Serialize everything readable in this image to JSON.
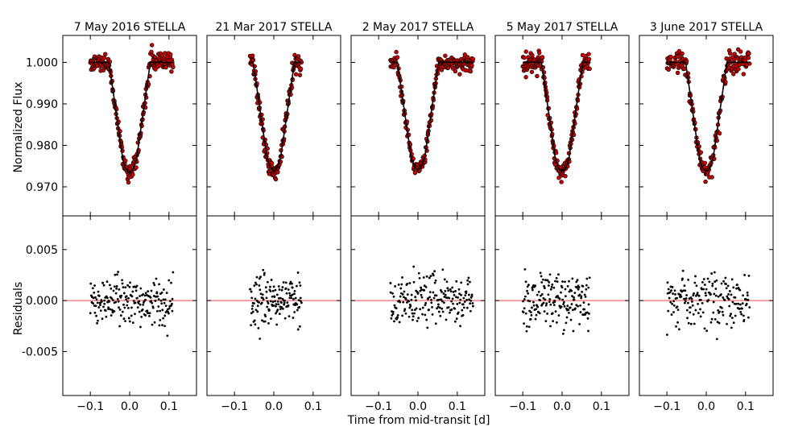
{
  "chart_data": {
    "type": "scatter",
    "xlabel": "Time from mid-transit [d]",
    "ylabel_top": "Normalized Flux",
    "ylabel_bottom": "Residuals",
    "xlim": [
      -0.17,
      0.17
    ],
    "xticks": [
      -0.1,
      0.0,
      0.1
    ],
    "xtick_labels": [
      "−0.1",
      "0.0",
      "0.1"
    ],
    "flux_ylim": [
      0.963,
      1.0065
    ],
    "flux_yticks": [
      1.0,
      0.99,
      0.98,
      0.97
    ],
    "flux_ytick_labels": [
      "1.000",
      "0.990",
      "0.980",
      "0.970"
    ],
    "resid_ylim": [
      -0.0093,
      0.0083
    ],
    "resid_yticks": [
      0.005,
      0.0,
      -0.005
    ],
    "resid_ytick_labels": [
      "0.005",
      "0.000",
      "-0.005"
    ],
    "model_color": "#000000",
    "point_color": "#cc0000",
    "zero_line_color": "#ff4444",
    "panels": [
      {
        "title": "7 May 2016 STELLA",
        "t_start": -0.1,
        "t_end": 0.11,
        "t14": 0.105,
        "tau": 0.035,
        "depth": 0.0265,
        "flux_noise": 0.0011,
        "resid_noise": 0.0017,
        "n": 210
      },
      {
        "title": "21 Mar 2017 STELLA",
        "t_start": -0.06,
        "t_end": 0.07,
        "t14": 0.105,
        "tau": 0.035,
        "depth": 0.026,
        "flux_noise": 0.0012,
        "resid_noise": 0.0016,
        "n": 150
      },
      {
        "title": "2 May 2017 STELLA",
        "t_start": -0.07,
        "t_end": 0.14,
        "t14": 0.105,
        "tau": 0.035,
        "depth": 0.0258,
        "flux_noise": 0.001,
        "resid_noise": 0.0017,
        "n": 200
      },
      {
        "title": "5 May 2017 STELLA",
        "t_start": -0.1,
        "t_end": 0.07,
        "t14": 0.105,
        "tau": 0.035,
        "depth": 0.0262,
        "flux_noise": 0.0012,
        "resid_noise": 0.0019,
        "n": 180
      },
      {
        "title": "3 June 2017 STELLA",
        "t_start": -0.1,
        "t_end": 0.11,
        "t14": 0.105,
        "tau": 0.035,
        "depth": 0.0262,
        "flux_noise": 0.0013,
        "resid_noise": 0.0019,
        "n": 190
      }
    ]
  }
}
